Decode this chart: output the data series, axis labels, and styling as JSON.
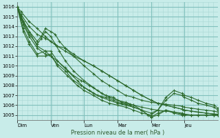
{
  "title": "",
  "xlabel": "Pression niveau de la mer( hPa )",
  "ylabel": "",
  "bg_color": "#c8ece9",
  "grid_major_color": "#80c0bc",
  "grid_minor_color": "#a8d8d4",
  "line_color": "#2d6a2d",
  "ylim": [
    1004.5,
    1016.5
  ],
  "yticks": [
    1005,
    1006,
    1007,
    1008,
    1009,
    1010,
    1011,
    1012,
    1013,
    1014,
    1015,
    1016
  ],
  "day_labels": [
    "Dim",
    "Ven",
    "Lun",
    "Mar",
    "Mer",
    "Jeu"
  ],
  "xlim": [
    0,
    1
  ],
  "day_x": [
    0.0,
    0.167,
    0.333,
    0.5,
    0.667,
    0.833
  ],
  "lines": [
    {
      "x": [
        0.0,
        0.02,
        0.06,
        0.1,
        0.14,
        0.167,
        0.2,
        0.24,
        0.28,
        0.333,
        0.38,
        0.42,
        0.46,
        0.5,
        0.54,
        0.58,
        0.62,
        0.667,
        0.7,
        0.74,
        0.78,
        0.82,
        0.833,
        0.867,
        0.9,
        0.94,
        0.98,
        1.0
      ],
      "y": [
        1016.0,
        1015.5,
        1014.5,
        1013.8,
        1013.0,
        1012.5,
        1012.0,
        1011.5,
        1011.0,
        1010.5,
        1010.0,
        1009.5,
        1009.0,
        1008.5,
        1008.0,
        1007.5,
        1007.0,
        1006.5,
        1006.2,
        1006.0,
        1005.8,
        1005.6,
        1005.5,
        1005.4,
        1005.3,
        1005.2,
        1005.1,
        1005.0
      ]
    },
    {
      "x": [
        0.0,
        0.02,
        0.06,
        0.1,
        0.14,
        0.167,
        0.2,
        0.24,
        0.28,
        0.333,
        0.38,
        0.42,
        0.46,
        0.5,
        0.54,
        0.58,
        0.62,
        0.667,
        0.7,
        0.74,
        0.78,
        0.82,
        0.833,
        0.867,
        0.9,
        0.94,
        0.98,
        1.0
      ],
      "y": [
        1016.0,
        1015.2,
        1014.0,
        1013.2,
        1012.8,
        1012.5,
        1012.0,
        1011.8,
        1011.2,
        1010.5,
        1010.0,
        1009.5,
        1009.0,
        1008.5,
        1008.0,
        1007.5,
        1007.0,
        1006.5,
        1006.2,
        1006.0,
        1005.8,
        1005.6,
        1005.5,
        1005.4,
        1005.3,
        1005.2,
        1005.1,
        1005.1
      ]
    },
    {
      "x": [
        0.0,
        0.02,
        0.06,
        0.1,
        0.12,
        0.14,
        0.167,
        0.19,
        0.21,
        0.24,
        0.28,
        0.333,
        0.38,
        0.42,
        0.46,
        0.5,
        0.54,
        0.58,
        0.62,
        0.667,
        0.7,
        0.74,
        0.78,
        0.82,
        0.833,
        0.867,
        0.9,
        0.94,
        0.98,
        1.0
      ],
      "y": [
        1016.0,
        1015.0,
        1013.5,
        1012.5,
        1013.0,
        1013.8,
        1013.5,
        1013.2,
        1012.5,
        1011.8,
        1011.0,
        1010.0,
        1009.2,
        1008.5,
        1008.0,
        1007.5,
        1007.0,
        1006.8,
        1006.5,
        1006.3,
        1006.2,
        1006.1,
        1006.0,
        1005.9,
        1005.8,
        1005.7,
        1005.6,
        1005.5,
        1005.4,
        1005.3
      ]
    },
    {
      "x": [
        0.0,
        0.02,
        0.06,
        0.1,
        0.12,
        0.14,
        0.167,
        0.19,
        0.21,
        0.24,
        0.28,
        0.333,
        0.38,
        0.42,
        0.46,
        0.5,
        0.54,
        0.58,
        0.62,
        0.667,
        0.7,
        0.74,
        0.78,
        0.82,
        0.833,
        0.867,
        0.9,
        0.94,
        0.98,
        1.0
      ],
      "y": [
        1016.0,
        1014.8,
        1013.2,
        1012.2,
        1012.8,
        1013.5,
        1013.0,
        1012.2,
        1011.5,
        1010.5,
        1009.5,
        1008.5,
        1007.8,
        1007.2,
        1006.8,
        1006.5,
        1006.3,
        1006.0,
        1005.8,
        1005.6,
        1005.5,
        1005.4,
        1005.3,
        1005.2,
        1005.1,
        1005.0,
        1005.0,
        1005.0,
        1005.0,
        1005.0
      ]
    },
    {
      "x": [
        0.0,
        0.03,
        0.06,
        0.1,
        0.14,
        0.167,
        0.2,
        0.24,
        0.28,
        0.32,
        0.36,
        0.4,
        0.44,
        0.48,
        0.5,
        0.52,
        0.56,
        0.58,
        0.62,
        0.667,
        0.7,
        0.74,
        0.78,
        0.82,
        0.833,
        0.867,
        0.9,
        0.94,
        0.98,
        1.0
      ],
      "y": [
        1016.0,
        1014.5,
        1013.5,
        1012.0,
        1011.5,
        1011.0,
        1010.5,
        1009.8,
        1009.0,
        1008.5,
        1008.0,
        1007.5,
        1007.0,
        1006.8,
        1006.5,
        1006.3,
        1006.1,
        1006.0,
        1005.5,
        1004.8,
        1005.0,
        1005.5,
        1005.2,
        1005.0,
        1005.0,
        1005.0,
        1005.0,
        1005.0,
        1005.0,
        1005.0
      ]
    },
    {
      "x": [
        0.0,
        0.03,
        0.06,
        0.1,
        0.14,
        0.167,
        0.2,
        0.24,
        0.28,
        0.32,
        0.36,
        0.4,
        0.44,
        0.48,
        0.5,
        0.52,
        0.54,
        0.56,
        0.58,
        0.62,
        0.65,
        0.667,
        0.7,
        0.74,
        0.78,
        0.82,
        0.833,
        0.867,
        0.9,
        0.94,
        0.98,
        1.0
      ],
      "y": [
        1016.0,
        1014.2,
        1013.0,
        1011.8,
        1011.2,
        1011.0,
        1010.2,
        1009.5,
        1008.5,
        1008.0,
        1007.5,
        1007.0,
        1006.8,
        1006.5,
        1006.3,
        1006.2,
        1006.1,
        1006.0,
        1005.8,
        1005.5,
        1005.0,
        1004.8,
        1005.2,
        1005.5,
        1005.3,
        1005.1,
        1005.0,
        1005.0,
        1005.0,
        1005.0,
        1005.0,
        1005.0
      ]
    },
    {
      "x": [
        0.0,
        0.03,
        0.06,
        0.1,
        0.14,
        0.167,
        0.2,
        0.25,
        0.3,
        0.333,
        0.38,
        0.42,
        0.46,
        0.5,
        0.54,
        0.58,
        0.62,
        0.667,
        0.7,
        0.74,
        0.78,
        0.82,
        0.833,
        0.867,
        0.9,
        0.94,
        0.98,
        1.0
      ],
      "y": [
        1016.0,
        1013.8,
        1012.5,
        1011.2,
        1011.5,
        1011.5,
        1010.5,
        1009.5,
        1008.5,
        1007.8,
        1007.2,
        1006.8,
        1006.5,
        1006.2,
        1006.0,
        1005.8,
        1005.5,
        1005.2,
        1005.5,
        1006.5,
        1007.2,
        1007.0,
        1006.8,
        1006.5,
        1006.2,
        1006.0,
        1005.8,
        1005.5
      ]
    },
    {
      "x": [
        0.0,
        0.03,
        0.06,
        0.1,
        0.14,
        0.167,
        0.2,
        0.25,
        0.3,
        0.333,
        0.38,
        0.42,
        0.46,
        0.5,
        0.54,
        0.58,
        0.62,
        0.667,
        0.7,
        0.74,
        0.78,
        0.82,
        0.833,
        0.867,
        0.9,
        0.94,
        0.98,
        1.0
      ],
      "y": [
        1016.0,
        1013.5,
        1012.2,
        1011.0,
        1011.0,
        1011.2,
        1010.0,
        1009.0,
        1008.0,
        1007.5,
        1007.0,
        1006.5,
        1006.2,
        1006.0,
        1005.8,
        1005.5,
        1005.2,
        1005.0,
        1005.5,
        1006.8,
        1007.5,
        1007.2,
        1007.0,
        1006.8,
        1006.5,
        1006.2,
        1006.0,
        1005.7
      ]
    }
  ]
}
